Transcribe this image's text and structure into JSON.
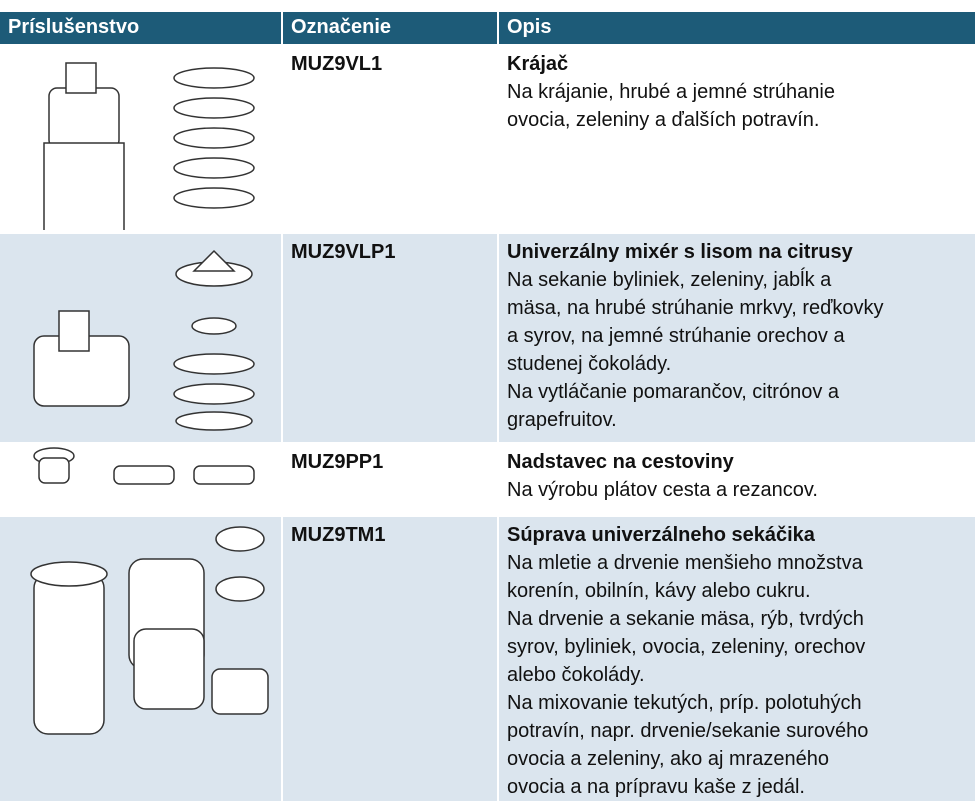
{
  "table": {
    "header": [
      "Príslušenstvo",
      "Označenie",
      "Opis"
    ],
    "rows": [
      {
        "code": "MUZ9VL1",
        "title": "Krájač",
        "lines": [
          "Na krájanie, hrubé a jemné strúhanie",
          "ovocia, zeleniny a ďalších potravín."
        ]
      },
      {
        "code": "MUZ9VLP1",
        "title": "Univerzálny mixér s lisom na citrusy",
        "lines": [
          "Na sekanie byliniek, zeleniny, jabĺk a",
          "mäsa, na hrubé strúhanie mrkvy, reďkovky",
          "a syrov, na jemné strúhanie orechov a",
          "studenej čokolády.",
          "Na vytláčanie pomarančov, citrónov a",
          "grapefruitov."
        ]
      },
      {
        "code": "MUZ9PP1",
        "title": "Nadstavec na cestoviny",
        "lines": [
          "Na výrobu plátov cesta a rezancov."
        ]
      },
      {
        "code": "MUZ9TM1",
        "title": "Súprava univerzálneho sekáčika",
        "lines": [
          "Na mletie a drvenie menšieho množstva",
          "korenín, obilnín, kávy alebo cukru.",
          "Na drvenie a sekanie mäsa, rýb, tvrdých",
          "syrov, byliniek, ovocia, zeleniny, orechov",
          "alebo čokolády.",
          "Na mixovanie tekutých, príp. polotuhých",
          "potravín, napr. drvenie/sekanie surového",
          "ovocia a zeleniny, ako aj mrazeného",
          "ovocia a na prípravu kaše z jedál."
        ]
      }
    ]
  }
}
